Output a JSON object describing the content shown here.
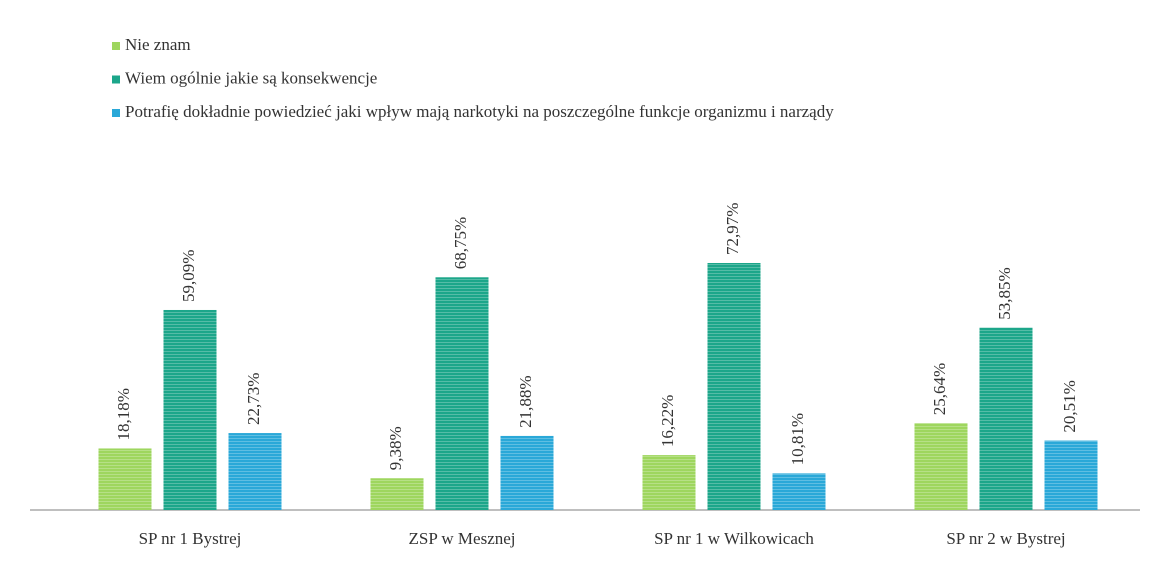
{
  "chart_data": {
    "type": "bar",
    "categories": [
      "SP nr 1 Bystrej",
      "ZSP w Mesznej",
      "SP nr 1 w Wilkowicach",
      "SP nr 2 w Bystrej"
    ],
    "series": [
      {
        "name": "Nie znam",
        "color": "#9ed65e",
        "values": [
          18.18,
          9.38,
          16.22,
          25.64
        ],
        "value_labels": [
          "18,18%",
          "9,38%",
          "16,22%",
          "25,64%"
        ]
      },
      {
        "name": "Wiem ogólnie jakie są konsekwencje",
        "color": "#1ca68a",
        "values": [
          59.09,
          68.75,
          72.97,
          53.85
        ],
        "value_labels": [
          "59,09%",
          "68,75%",
          "72,97%",
          "53,85%"
        ]
      },
      {
        "name": "Potrafię dokładnie powiedzieć jaki wpływ mają narkotyki na poszczególne funkcje organizmu i narządy",
        "color": "#2aa8d8",
        "values": [
          22.73,
          21.88,
          10.81,
          20.51
        ],
        "value_labels": [
          "22,73%",
          "21,88%",
          "10,81%",
          "20,51%"
        ]
      }
    ],
    "legend": "top-left"
  }
}
